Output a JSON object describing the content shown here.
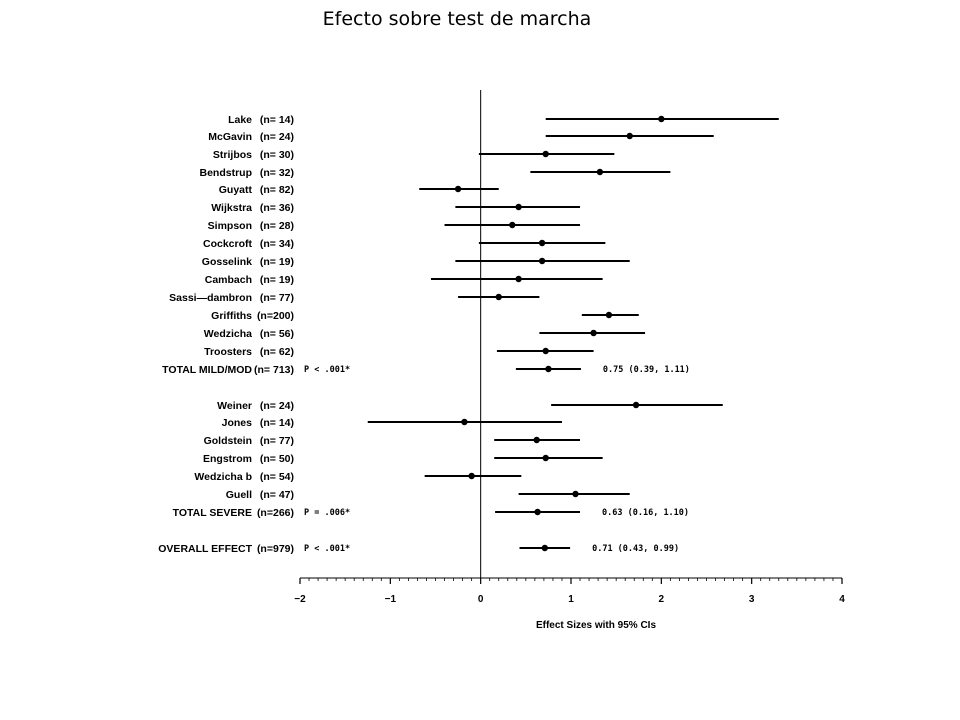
{
  "slide": {
    "title": "Efecto sobre test de marcha"
  },
  "chart_data": {
    "type": "forest",
    "xlabel": "Effect Sizes with 95% CIs",
    "xlim": [
      -2,
      4
    ],
    "x_ticks": [
      "−2",
      "−1",
      "0",
      "1",
      "2",
      "3",
      "4"
    ],
    "x_tick_values": [
      -2,
      -1,
      0,
      1,
      2,
      3,
      4
    ],
    "reference_line": 0,
    "rows": [
      {
        "name": "Lake",
        "n": "(n= 14)",
        "est": 2.0,
        "lo": 0.72,
        "hi": 3.3,
        "kind": "study"
      },
      {
        "name": "McGavin",
        "n": "(n= 24)",
        "est": 1.65,
        "lo": 0.72,
        "hi": 2.58,
        "kind": "study"
      },
      {
        "name": "Strijbos",
        "n": "(n= 30)",
        "est": 0.72,
        "lo": -0.02,
        "hi": 1.48,
        "kind": "study"
      },
      {
        "name": "Bendstrup",
        "n": "(n= 32)",
        "est": 1.32,
        "lo": 0.55,
        "hi": 2.1,
        "kind": "study"
      },
      {
        "name": "Guyatt",
        "n": "(n= 82)",
        "est": -0.25,
        "lo": -0.68,
        "hi": 0.2,
        "kind": "study"
      },
      {
        "name": "Wijkstra",
        "n": "(n= 36)",
        "est": 0.42,
        "lo": -0.28,
        "hi": 1.1,
        "kind": "study"
      },
      {
        "name": "Simpson",
        "n": "(n= 28)",
        "est": 0.35,
        "lo": -0.4,
        "hi": 1.1,
        "kind": "study"
      },
      {
        "name": "Cockcroft",
        "n": "(n= 34)",
        "est": 0.68,
        "lo": -0.02,
        "hi": 1.38,
        "kind": "study"
      },
      {
        "name": "Gosselink",
        "n": "(n= 19)",
        "est": 0.68,
        "lo": -0.28,
        "hi": 1.65,
        "kind": "study"
      },
      {
        "name": "Cambach",
        "n": "(n= 19)",
        "est": 0.42,
        "lo": -0.55,
        "hi": 1.35,
        "kind": "study"
      },
      {
        "name": "Sassi—dambron",
        "n": "(n= 77)",
        "est": 0.2,
        "lo": -0.25,
        "hi": 0.65,
        "kind": "study"
      },
      {
        "name": "Griffiths",
        "n": "(n=200)",
        "est": 1.42,
        "lo": 1.12,
        "hi": 1.75,
        "kind": "study"
      },
      {
        "name": "Wedzicha",
        "n": "(n= 56)",
        "est": 1.25,
        "lo": 0.65,
        "hi": 1.82,
        "kind": "study"
      },
      {
        "name": "Troosters",
        "n": "(n= 62)",
        "est": 0.72,
        "lo": 0.18,
        "hi": 1.25,
        "kind": "study"
      },
      {
        "name": "TOTAL MILD/MOD",
        "n": "(n= 713)",
        "est": 0.75,
        "lo": 0.39,
        "hi": 1.11,
        "kind": "total",
        "p": "P < .001*",
        "ci": "0.75 (0.39, 1.11)"
      },
      {
        "name": "Weiner",
        "n": "(n= 24)",
        "est": 1.72,
        "lo": 0.78,
        "hi": 2.68,
        "kind": "study"
      },
      {
        "name": "Jones",
        "n": "(n= 14)",
        "est": -0.18,
        "lo": -1.25,
        "hi": 0.9,
        "kind": "study"
      },
      {
        "name": "Goldstein",
        "n": "(n= 77)",
        "est": 0.62,
        "lo": 0.15,
        "hi": 1.1,
        "kind": "study"
      },
      {
        "name": "Engstrom",
        "n": "(n= 50)",
        "est": 0.72,
        "lo": 0.15,
        "hi": 1.35,
        "kind": "study"
      },
      {
        "name": "Wedzicha b",
        "n": "(n= 54)",
        "est": -0.1,
        "lo": -0.62,
        "hi": 0.45,
        "kind": "study"
      },
      {
        "name": "Guell",
        "n": "(n= 47)",
        "est": 1.05,
        "lo": 0.42,
        "hi": 1.65,
        "kind": "study"
      },
      {
        "name": "TOTAL SEVERE",
        "n": "(n=266)",
        "est": 0.63,
        "lo": 0.16,
        "hi": 1.1,
        "kind": "total",
        "p": "P = .006*",
        "ci": "0.63 (0.16, 1.10)"
      },
      {
        "name": "OVERALL EFFECT",
        "n": "(n=979)",
        "est": 0.71,
        "lo": 0.43,
        "hi": 0.99,
        "kind": "total",
        "p": "P < .001*",
        "ci": "0.71 (0.43, 0.99)"
      }
    ]
  }
}
